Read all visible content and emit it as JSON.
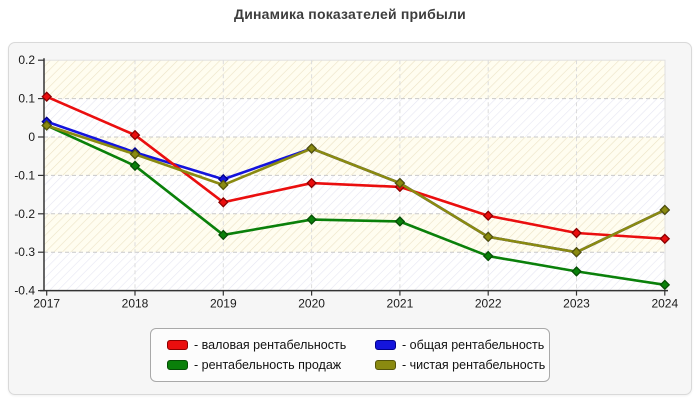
{
  "title": "Динамика показателей прибыли",
  "chart_data": {
    "type": "line",
    "x": [
      "2017",
      "2018",
      "2019",
      "2020",
      "2021",
      "2022",
      "2023",
      "2024"
    ],
    "ylim": [
      -0.4,
      0.2
    ],
    "y_tick_step": 0.1,
    "y_tick_labels": [
      "0.2",
      "0.1",
      "0",
      "-0.1",
      "-0.2",
      "-0.3",
      "-0.4"
    ],
    "grid": "dashed horizontal and vertical, interlaced hatched bands",
    "legend_position": "bottom",
    "series": [
      {
        "name": "общая рентабельность",
        "color": "#1414dc",
        "edge": "#00008b",
        "values": [
          0.04,
          -0.04,
          -0.11,
          -0.03,
          -0.12,
          -0.26,
          -0.3,
          -0.19
        ]
      },
      {
        "name": "рентабельность продаж",
        "color": "#0a800a",
        "edge": "#054d05",
        "values": [
          0.03,
          -0.075,
          -0.255,
          -0.215,
          -0.22,
          -0.31,
          -0.35,
          -0.385
        ]
      },
      {
        "name": "валовая рентабельность",
        "color": "#ea0e0e",
        "edge": "#8b0000",
        "values": [
          0.105,
          0.005,
          -0.17,
          -0.12,
          -0.13,
          -0.205,
          -0.25,
          -0.265
        ]
      },
      {
        "name": "чистая рентабельность",
        "color": "#8a8a10",
        "edge": "#55550a",
        "values": [
          0.03,
          -0.045,
          -0.125,
          -0.03,
          -0.12,
          -0.26,
          -0.3,
          -0.19
        ]
      }
    ],
    "style": {
      "band_a_fill": "#fffdf0",
      "band_a_hatch": "#ece3c6",
      "band_b_fill": "#ffffff",
      "band_b_hatch": "#e6e6f2",
      "grid_h": "#c9c9c9",
      "grid_v": "#dcdcdc",
      "axis": "#333333",
      "plot_edge": "#e0e0e0"
    }
  },
  "legend": {
    "items": [
      {
        "label": "- валовая рентабельность",
        "color": "#ea0e0e",
        "edge": "#8b0000"
      },
      {
        "label": "- общая рентабельность",
        "color": "#1414dc",
        "edge": "#00008b"
      },
      {
        "label": "- рентабельность продаж",
        "color": "#0a800a",
        "edge": "#054d05"
      },
      {
        "label": "- чистая рентабельность",
        "color": "#8a8a10",
        "edge": "#55550a"
      }
    ]
  }
}
